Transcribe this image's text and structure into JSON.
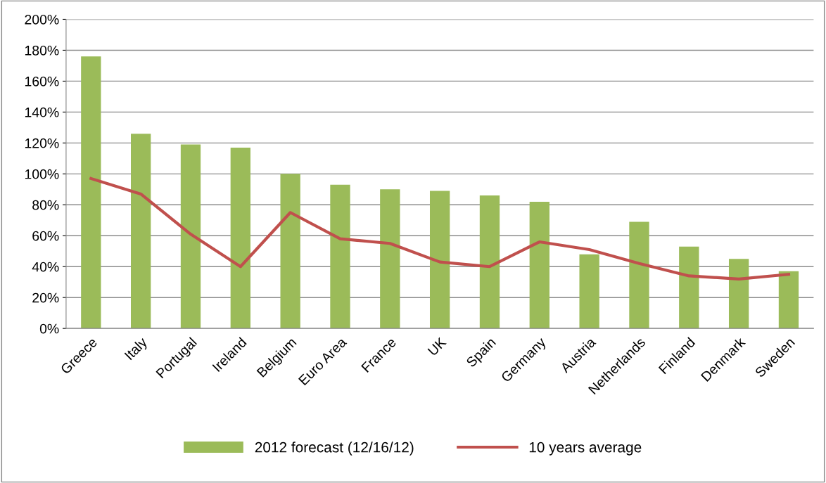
{
  "chart_data": {
    "type": "bar",
    "categories": [
      "Greece",
      "Italy",
      "Portugal",
      "Ireland",
      "Belgium",
      "Euro Area",
      "France",
      "UK",
      "Spain",
      "Germany",
      "Austria",
      "Netherlands",
      "Finland",
      "Denmark",
      "Sweden"
    ],
    "series": [
      {
        "name": "2012 forecast (12/16/12)",
        "color": "#9bbb59",
        "values": [
          176,
          126,
          119,
          117,
          100,
          93,
          90,
          89,
          86,
          82,
          48,
          69,
          53,
          45,
          37
        ]
      },
      {
        "name": "10 years average",
        "type": "line",
        "color": "#c0504d",
        "values": [
          97,
          87,
          61,
          40,
          75,
          58,
          55,
          43,
          40,
          56,
          51,
          42,
          34,
          32,
          35
        ]
      }
    ],
    "ylim": [
      0,
      200
    ],
    "yticks": [
      {
        "value": 0,
        "label": "0%"
      },
      {
        "value": 20,
        "label": "20%"
      },
      {
        "value": 40,
        "label": "40%"
      },
      {
        "value": 60,
        "label": "60%"
      },
      {
        "value": 80,
        "label": "80%"
      },
      {
        "value": 100,
        "label": "100%"
      },
      {
        "value": 120,
        "label": "120%"
      },
      {
        "value": 140,
        "label": "140%"
      },
      {
        "value": 160,
        "label": "160%"
      },
      {
        "value": 180,
        "label": "180%"
      },
      {
        "value": 200,
        "label": "200%"
      }
    ],
    "grid": "y",
    "legend": "bottom",
    "marker": "none",
    "line_style": "solid"
  }
}
